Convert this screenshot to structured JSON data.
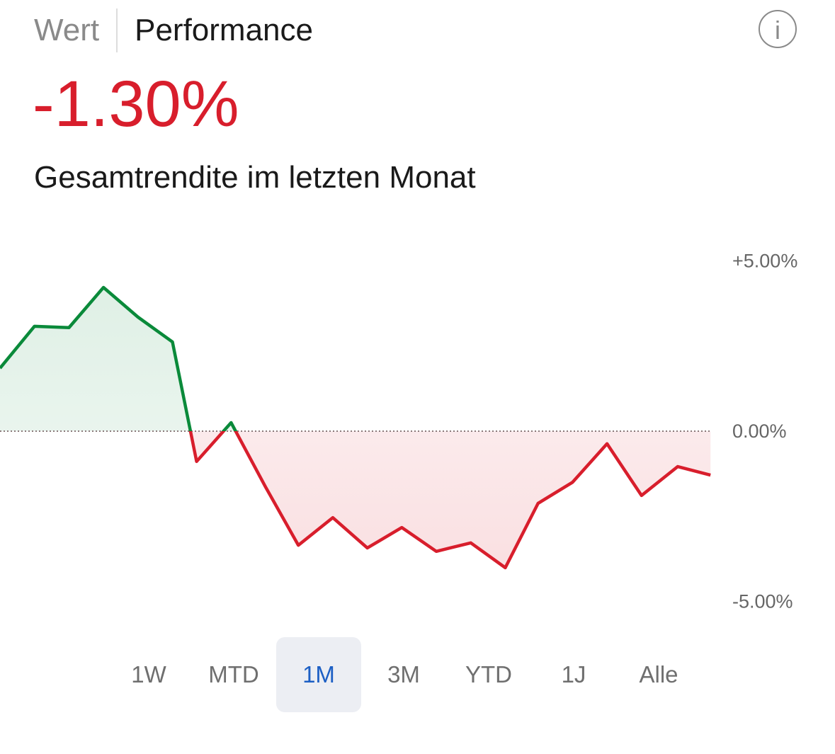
{
  "header": {
    "tabs": [
      "Wert",
      "Performance"
    ],
    "active_tab": "Performance",
    "info_icon": "info-icon"
  },
  "summary": {
    "value": "-1.30%",
    "label": "Gesamtrendite im letzten Monat"
  },
  "periods": {
    "items": [
      "1W",
      "MTD",
      "1M",
      "3M",
      "YTD",
      "1J",
      "Alle"
    ],
    "selected": "1M"
  },
  "colors": {
    "positive": "#0a8a3a",
    "negative": "#d81e2c",
    "accent": "#1c5fc4"
  },
  "chart_data": {
    "type": "area",
    "title": "Performance",
    "ylim": [
      -5,
      5
    ],
    "yticks": [
      {
        "v": 5,
        "label": "+5.00%"
      },
      {
        "v": 0,
        "label": "0.00%"
      },
      {
        "v": -5,
        "label": "-5.00%"
      }
    ],
    "values": [
      1.85,
      3.08,
      3.04,
      4.22,
      3.35,
      2.62,
      -0.89,
      0.25,
      -1.64,
      -3.35,
      -2.54,
      -3.43,
      -2.83,
      -3.53,
      -3.28,
      -4.01,
      -2.12,
      -1.5,
      -0.37,
      -1.89,
      -1.04,
      -1.29
    ],
    "x_positions": [
      0,
      1,
      2,
      3,
      4,
      5,
      5.7,
      6.7,
      7.7,
      8.65,
      9.65,
      10.65,
      11.65,
      12.65,
      13.65,
      14.65,
      15.6,
      16.6,
      17.6,
      18.6,
      19.65,
      20.6
    ]
  }
}
